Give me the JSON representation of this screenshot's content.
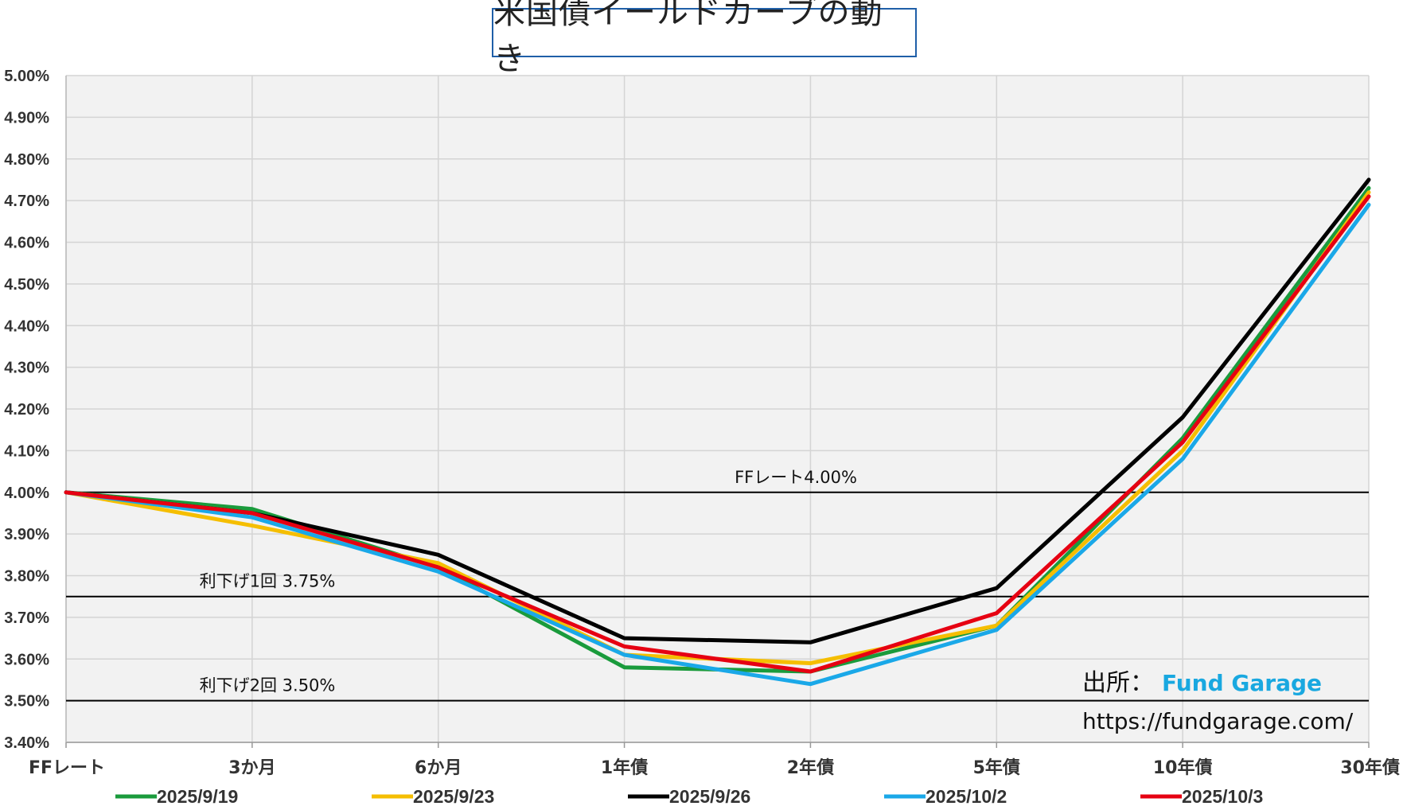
{
  "chart_data": {
    "type": "line",
    "title": "米国債イールドカーブの動き",
    "categories": [
      "FFレート",
      "3か月",
      "6か月",
      "1年債",
      "2年債",
      "5年債",
      "10年債",
      "30年債"
    ],
    "y_ticks": [
      "5.00%",
      "4.90%",
      "4.80%",
      "4.70%",
      "4.60%",
      "4.50%",
      "4.40%",
      "4.30%",
      "4.20%",
      "4.10%",
      "4.00%",
      "3.90%",
      "3.80%",
      "3.70%",
      "3.60%",
      "3.50%",
      "3.40%"
    ],
    "ylim": [
      3.4,
      5.0
    ],
    "grid": true,
    "legend_position": "bottom",
    "series": [
      {
        "name": "2025/9/19",
        "color": "#1a9b3c",
        "values": [
          4.0,
          3.96,
          3.82,
          3.58,
          3.57,
          3.68,
          4.13,
          4.73
        ]
      },
      {
        "name": "2025/9/23",
        "color": "#f5be00",
        "values": [
          4.0,
          3.92,
          3.83,
          3.61,
          3.59,
          3.68,
          4.1,
          4.72
        ]
      },
      {
        "name": "2025/9/26",
        "color": "#000000",
        "values": [
          4.0,
          3.95,
          3.85,
          3.65,
          3.64,
          3.77,
          4.18,
          4.75
        ]
      },
      {
        "name": "2025/10/2",
        "color": "#1aa8e8",
        "values": [
          4.0,
          3.94,
          3.81,
          3.61,
          3.54,
          3.67,
          4.08,
          4.69
        ]
      },
      {
        "name": "2025/10/3",
        "color": "#e60012",
        "values": [
          4.0,
          3.95,
          3.82,
          3.63,
          3.57,
          3.71,
          4.12,
          4.71
        ]
      }
    ],
    "reference_lines": [
      {
        "value": 4.0,
        "label": "FFレート4.00%"
      },
      {
        "value": 3.75,
        "label": "利下げ1回 3.75%"
      },
      {
        "value": 3.5,
        "label": "利下げ2回 3.50%"
      }
    ],
    "source_label": "出所：",
    "source_name": "Fund Garage",
    "source_url": "https://fundgarage.com/"
  }
}
